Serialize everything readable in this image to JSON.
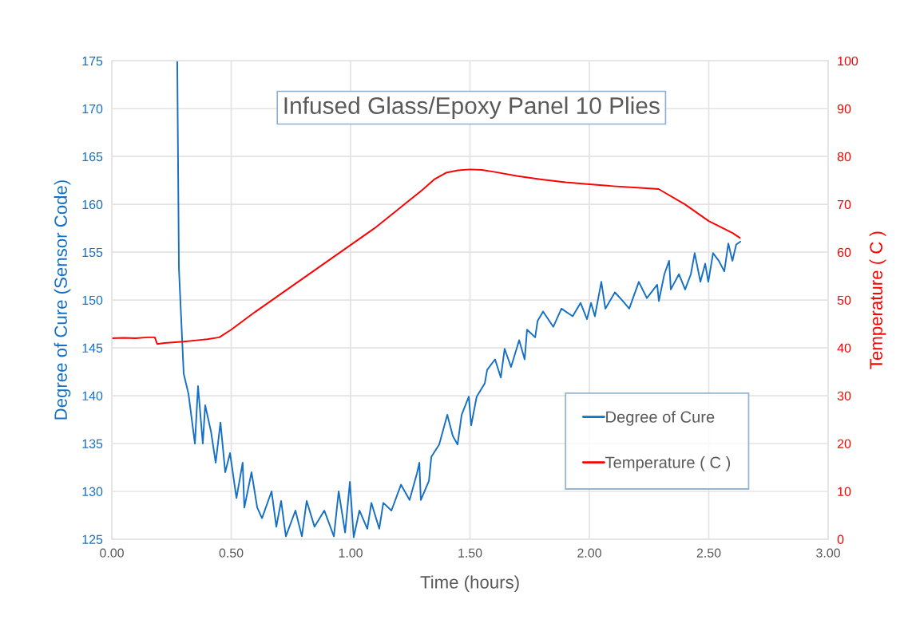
{
  "chart_data": {
    "type": "line",
    "title": "Infused Glass/Epoxy Panel 10 Plies",
    "xlabel": "Time (hours)",
    "ylabel": "Degree of Cure (Sensor Code)",
    "y2label": "Temperature ( C )",
    "xlim": [
      0,
      3
    ],
    "xticks": [
      {
        "value": 0,
        "label": "0.00"
      },
      {
        "value": 0.5,
        "label": "0.50"
      },
      {
        "value": 1,
        "label": "1.00"
      },
      {
        "value": 1.5,
        "label": "1.50"
      },
      {
        "value": 2,
        "label": "2.00"
      },
      {
        "value": 2.5,
        "label": "2.50"
      },
      {
        "value": 3,
        "label": "3.00"
      }
    ],
    "ylim": [
      125,
      175
    ],
    "yticks": [
      125,
      130,
      135,
      140,
      145,
      150,
      155,
      160,
      165,
      170,
      175
    ],
    "y2lim": [
      0,
      100
    ],
    "y2ticks": [
      0,
      10,
      20,
      30,
      40,
      50,
      60,
      70,
      80,
      90,
      100
    ],
    "grid": true,
    "legend": "bottom right",
    "series": [
      {
        "name": "Degree of Cure",
        "color": "#1670c4",
        "axis": "y",
        "x": [
          0.274,
          0.281,
          0.301,
          0.321,
          0.348,
          0.361,
          0.381,
          0.391,
          0.415,
          0.435,
          0.455,
          0.475,
          0.495,
          0.522,
          0.548,
          0.555,
          0.585,
          0.609,
          0.629,
          0.669,
          0.689,
          0.709,
          0.729,
          0.769,
          0.796,
          0.816,
          0.849,
          0.89,
          0.93,
          0.95,
          0.977,
          0.997,
          1.013,
          1.037,
          1.07,
          1.087,
          1.12,
          1.137,
          1.171,
          1.211,
          1.247,
          1.278,
          1.288,
          1.294,
          1.328,
          1.338,
          1.371,
          1.405,
          1.428,
          1.448,
          1.465,
          1.495,
          1.505,
          1.528,
          1.562,
          1.572,
          1.605,
          1.629,
          1.645,
          1.672,
          1.706,
          1.729,
          1.739,
          1.773,
          1.783,
          1.806,
          1.849,
          1.883,
          1.93,
          1.963,
          1.99,
          2.007,
          2.023,
          2.05,
          2.067,
          2.107,
          2.14,
          2.167,
          2.207,
          2.241,
          2.284,
          2.291,
          2.314,
          2.334,
          2.341,
          2.375,
          2.401,
          2.425,
          2.441,
          2.465,
          2.485,
          2.498,
          2.518,
          2.542,
          2.565,
          2.582,
          2.599,
          2.615,
          2.632
        ],
        "values": [
          175,
          153.3,
          142.3,
          140.2,
          135,
          141,
          135,
          139,
          136.3,
          133,
          137.2,
          132,
          134,
          129.3,
          133,
          128.3,
          132,
          128.3,
          127.2,
          130,
          126.3,
          129,
          125.3,
          128,
          125.3,
          129,
          126.3,
          128,
          125.3,
          130,
          125.7,
          131,
          125.2,
          128,
          126.1,
          128.8,
          126.1,
          128.8,
          128,
          130.7,
          129.1,
          131.9,
          133,
          129.1,
          131.1,
          133.6,
          134.9,
          138,
          135.8,
          134.9,
          138,
          139.9,
          136.9,
          139.9,
          141.3,
          142.7,
          143.8,
          141.9,
          144.9,
          143,
          145.8,
          143.8,
          146.9,
          146.1,
          147.8,
          148.8,
          147.2,
          149.1,
          148.3,
          149.7,
          148,
          149.7,
          148.3,
          151.9,
          149.1,
          150.8,
          149.9,
          149.1,
          151.9,
          150.2,
          151.6,
          149.9,
          152.7,
          154.1,
          151.1,
          152.7,
          151.1,
          152.7,
          154.9,
          151.9,
          153.8,
          151.9,
          154.9,
          154.1,
          153,
          155.9,
          154.1,
          155.8,
          156.1
        ]
      },
      {
        "name": "Temperature ( C )",
        "color": "#ff0000",
        "axis": "y2",
        "x": [
          0,
          0.05,
          0.1,
          0.15,
          0.18,
          0.19,
          0.22,
          0.3,
          0.4,
          0.45,
          0.5,
          0.6,
          0.7,
          0.8,
          0.9,
          1.0,
          1.1,
          1.2,
          1.3,
          1.35,
          1.4,
          1.45,
          1.5,
          1.55,
          1.6,
          1.7,
          1.8,
          1.9,
          2.0,
          2.1,
          2.2,
          2.29,
          2.4,
          2.5,
          2.6,
          2.63
        ],
        "values": [
          42.0,
          42.1,
          42.0,
          42.2,
          42.2,
          40.8,
          41.0,
          41.3,
          41.8,
          42.2,
          43.8,
          47.5,
          51.0,
          54.5,
          58.0,
          61.5,
          65.0,
          69.0,
          73.0,
          75.2,
          76.6,
          77.1,
          77.3,
          77.2,
          76.8,
          75.9,
          75.2,
          74.6,
          74.2,
          73.8,
          73.5,
          73.2,
          70.0,
          66.5,
          64.0,
          63.0
        ]
      }
    ]
  }
}
